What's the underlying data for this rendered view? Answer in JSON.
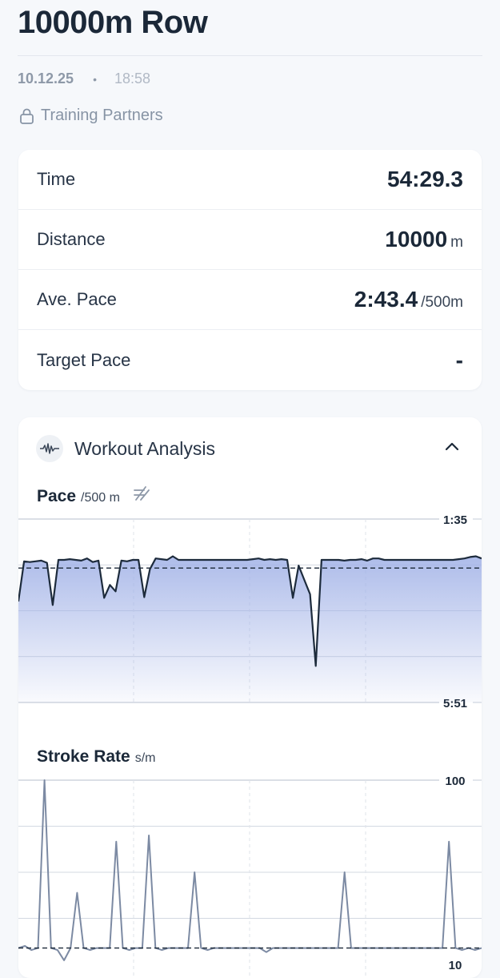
{
  "workout": {
    "title": "10000m Row",
    "date": "10.12.25",
    "separator": "•",
    "time": "18:58",
    "visibility": "Training Partners"
  },
  "stats": [
    {
      "label": "Time",
      "value": "54:29.3",
      "unit": ""
    },
    {
      "label": "Distance",
      "value": "10000",
      "unit": "m"
    },
    {
      "label": "Ave. Pace",
      "value": "2:43.4",
      "unit": "/500m"
    },
    {
      "label": "Target Pace",
      "value": "-",
      "unit": ""
    }
  ],
  "analysis": {
    "title": "Workout Analysis",
    "icons": {
      "header": "waveform-icon",
      "toggle": "chevron-up-icon",
      "pace_toggle": "split-toggle-icon",
      "lock": "lock-icon"
    },
    "pace": {
      "title": "Pace",
      "unit": "/500 m",
      "top_label": "1:35",
      "bottom_label": "5:51"
    },
    "stroke_rate": {
      "title": "Stroke Rate",
      "unit": "s/m",
      "top_label": "100",
      "bottom_label": "10"
    }
  },
  "colors": {
    "line": "#1d2b3c",
    "fill": "#9fb0e6",
    "stroke_line": "#7c8aa3",
    "grid": "#c5ccd8"
  },
  "chart_data": [
    {
      "type": "area",
      "title": "Pace",
      "ylabel": "/500 m",
      "y_axis_inverted": true,
      "ylim": [
        "5:51",
        "1:35"
      ],
      "average_line": "2:43.4",
      "series": [
        {
          "values_seconds": [
            210,
            154,
            155,
            154,
            153,
            156,
            215,
            152,
            152,
            151,
            152,
            153,
            150,
            155,
            153,
            205,
            187,
            196,
            153,
            154,
            152,
            152,
            204,
            165,
            150,
            151,
            152,
            147,
            152,
            152,
            152,
            152,
            152,
            152,
            152,
            152,
            152,
            152,
            152,
            152,
            152,
            151,
            150,
            152,
            151,
            152,
            151,
            152,
            205,
            160,
            180,
            200,
            300,
            152,
            152,
            152,
            152,
            153,
            152,
            152,
            151,
            153,
            150,
            150,
            152,
            152,
            152,
            152,
            152,
            152,
            152,
            152,
            152,
            152,
            152,
            152,
            152,
            151,
            150,
            148,
            147,
            150
          ]
        }
      ]
    },
    {
      "type": "line",
      "title": "Stroke Rate",
      "ylabel": "s/m",
      "ylim": [
        10,
        100
      ],
      "average_line": 18,
      "series": [
        {
          "values": [
            18,
            19,
            17,
            18,
            100,
            18,
            17,
            12,
            18,
            45,
            18,
            17,
            18,
            18,
            18,
            70,
            18,
            17,
            18,
            18,
            73,
            18,
            17,
            18,
            18,
            18,
            18,
            55,
            18,
            17,
            18,
            18,
            18,
            18,
            18,
            18,
            18,
            18,
            16,
            18,
            18,
            18,
            18,
            18,
            18,
            18,
            18,
            18,
            18,
            18,
            55,
            18,
            18,
            18,
            18,
            18,
            18,
            18,
            18,
            18,
            18,
            18,
            18,
            18,
            18,
            18,
            70,
            18,
            17,
            18,
            17,
            18
          ]
        }
      ]
    }
  ]
}
